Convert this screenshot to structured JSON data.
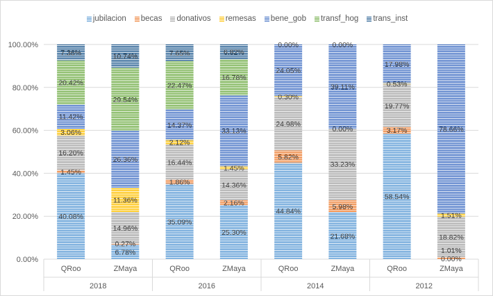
{
  "chart_data": {
    "type": "bar",
    "stacked": "percent",
    "title": "",
    "groups": [
      "2018",
      "2016",
      "2014",
      "2012"
    ],
    "categories": [
      "QRoo",
      "ZMaya",
      "QRoo",
      "ZMaya",
      "QRoo",
      "ZMaya",
      "QRoo",
      "ZMaya"
    ],
    "category_group": [
      "2018",
      "2018",
      "2016",
      "2016",
      "2014",
      "2014",
      "2012",
      "2012"
    ],
    "yticks": [
      "0.00%",
      "20.00%",
      "40.00%",
      "60.00%",
      "80.00%",
      "100.00%"
    ],
    "ylim": [
      0,
      100
    ],
    "legend_position": "top",
    "series": [
      {
        "name": "jubilacion",
        "color": "#5b9bd5",
        "values": [
          40.08,
          6.78,
          35.09,
          25.3,
          44.84,
          21.68,
          58.54,
          0.0
        ]
      },
      {
        "name": "becas",
        "color": "#ed7d31",
        "values": [
          1.45,
          0.27,
          1.86,
          2.16,
          5.82,
          5.98,
          3.17,
          1.01
        ]
      },
      {
        "name": "donativos",
        "color": "#a5a5a5",
        "values": [
          16.2,
          14.96,
          16.44,
          14.36,
          24.98,
          33.23,
          19.77,
          18.82
        ]
      },
      {
        "name": "remesas",
        "color": "#ffc000",
        "values": [
          3.06,
          11.36,
          2.12,
          1.45,
          0.3,
          0.0,
          0.53,
          1.51
        ]
      },
      {
        "name": "bene_gob",
        "color": "#4472c4",
        "values": [
          11.42,
          26.36,
          14.37,
          33.13,
          24.05,
          39.11,
          17.98,
          78.66
        ]
      },
      {
        "name": "transf_hog",
        "color": "#70ad47",
        "values": [
          20.42,
          29.54,
          22.47,
          16.78,
          null,
          null,
          null,
          null
        ]
      },
      {
        "name": "trans_inst",
        "color": "#255e91",
        "values": [
          7.36,
          10.74,
          7.65,
          6.82,
          0.0,
          0.0,
          null,
          null
        ]
      }
    ]
  }
}
